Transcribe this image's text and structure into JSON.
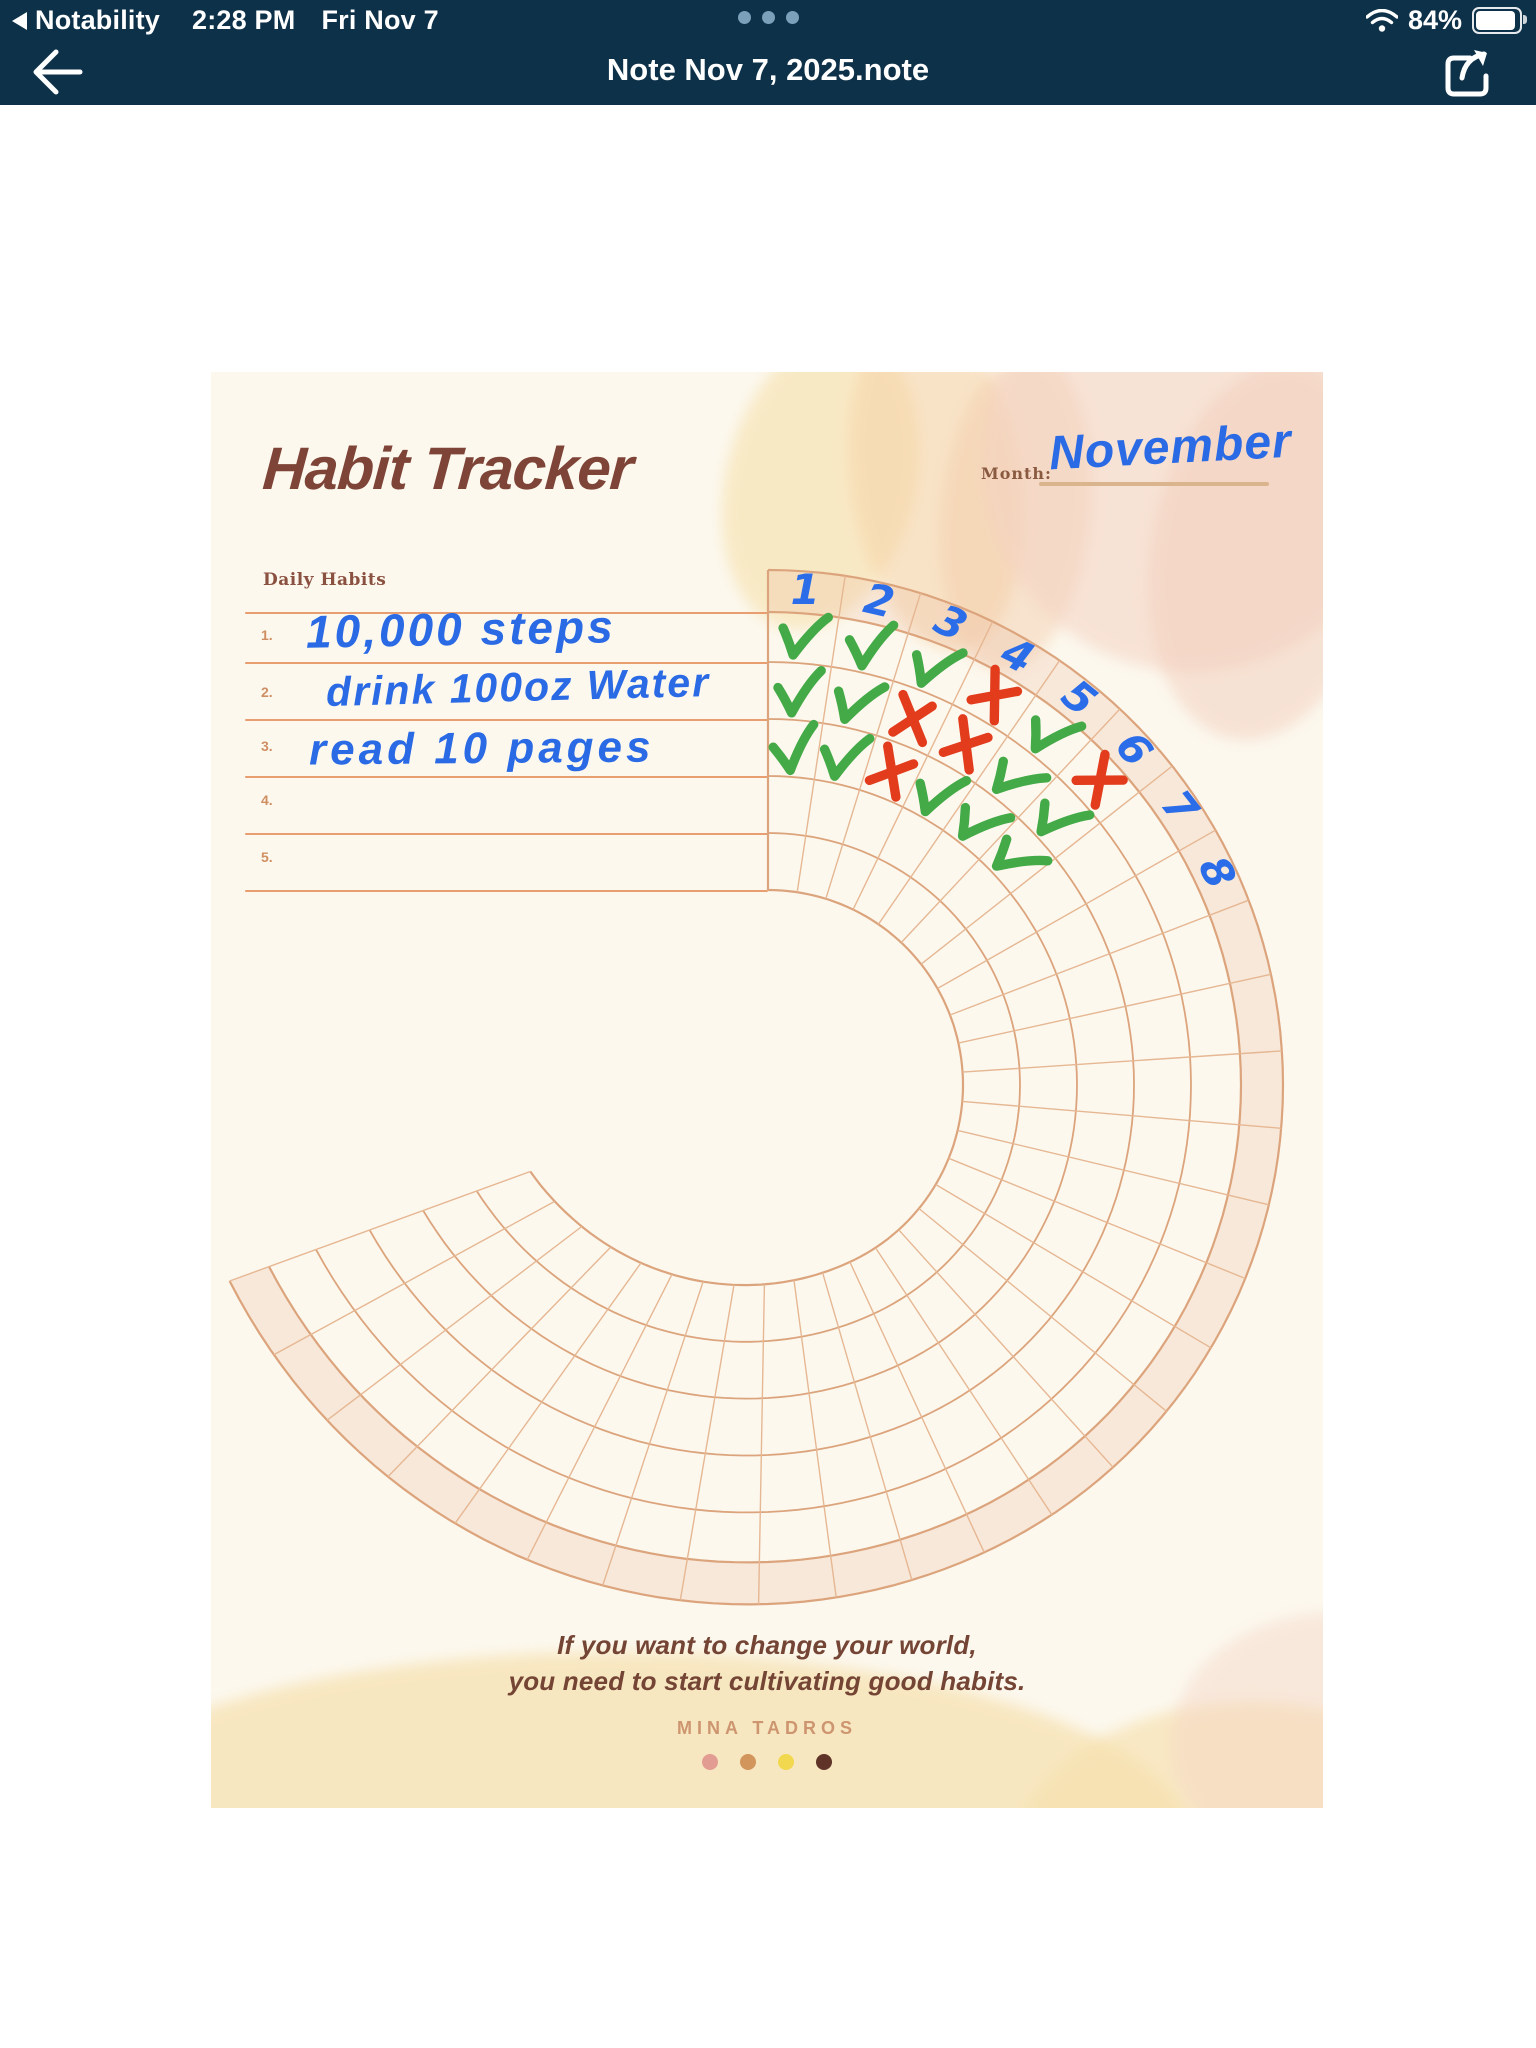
{
  "status_bar": {
    "back_app": "Notability",
    "time": "2:28 PM",
    "date": "Fri Nov 7",
    "battery_percent": "84%"
  },
  "nav_bar": {
    "title": "Note Nov 7, 2025.note"
  },
  "page": {
    "title": "Habit Tracker",
    "month_label": "Month:",
    "month_value": "November",
    "daily_habits_label": "Daily Habits",
    "habit_rows": [
      {
        "num": "1.",
        "text": "10,000 steps"
      },
      {
        "num": "2.",
        "text": "drink 100oz Water"
      },
      {
        "num": "3.",
        "text": "read 10 pages"
      },
      {
        "num": "4.",
        "text": ""
      },
      {
        "num": "5.",
        "text": ""
      }
    ],
    "quote_line1": "If you want to change your world,",
    "quote_line2": "you need to start cultivating good habits.",
    "author": "MINA TADROS",
    "palette_dots": [
      "#e29c92",
      "#d2955c",
      "#f2d84e",
      "#5f3327"
    ]
  },
  "tracker": {
    "month_days_labeled": [
      "1",
      "2",
      "3",
      "4",
      "5",
      "6",
      "7",
      "8"
    ],
    "marks": [
      {
        "day": 1,
        "habit": 1,
        "type": "check"
      },
      {
        "day": 1,
        "habit": 2,
        "type": "check"
      },
      {
        "day": 1,
        "habit": 3,
        "type": "check"
      },
      {
        "day": 2,
        "habit": 1,
        "type": "check"
      },
      {
        "day": 2,
        "habit": 2,
        "type": "check"
      },
      {
        "day": 2,
        "habit": 3,
        "type": "check"
      },
      {
        "day": 3,
        "habit": 1,
        "type": "check"
      },
      {
        "day": 3,
        "habit": 2,
        "type": "cross"
      },
      {
        "day": 3,
        "habit": 3,
        "type": "cross"
      },
      {
        "day": 4,
        "habit": 1,
        "type": "cross"
      },
      {
        "day": 4,
        "habit": 2,
        "type": "cross"
      },
      {
        "day": 4,
        "habit": 3,
        "type": "check"
      },
      {
        "day": 5,
        "habit": 1,
        "type": "check"
      },
      {
        "day": 5,
        "habit": 2,
        "type": "check"
      },
      {
        "day": 5,
        "habit": 3,
        "type": "check"
      },
      {
        "day": 6,
        "habit": 1,
        "type": "cross"
      },
      {
        "day": 6,
        "habit": 2,
        "type": "check"
      },
      {
        "day": 6,
        "habit": 3,
        "type": "check"
      }
    ],
    "colors": {
      "grid": "#dca47c",
      "grid_light": "#e6b793",
      "band_fill": "rgba(238,190,165,0.28)",
      "check": "#43aa47",
      "cross": "#e23c1d",
      "day_number": "#2b6de8",
      "ink": "#2a6ae4"
    }
  }
}
